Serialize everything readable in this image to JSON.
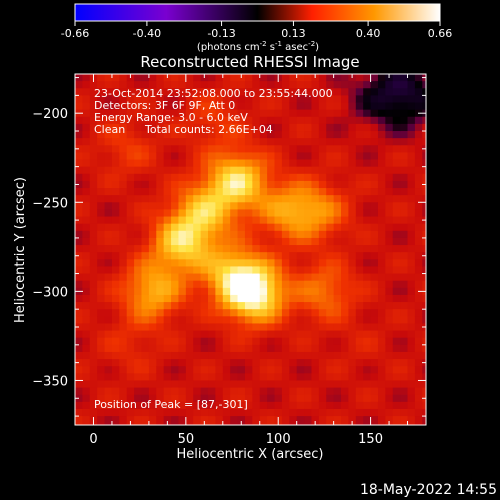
{
  "colorbar": {
    "tick_labels": [
      "-0.66",
      "-0.40",
      "-0.13",
      "0.13",
      "0.40",
      "0.66"
    ],
    "range": [
      -0.66,
      0.66
    ],
    "units_prefix": "(photons cm",
    "units_exp1": "-2",
    "units_mid": " s",
    "units_exp2": "-1",
    "units_mid2": " asec",
    "units_exp3": "-2",
    "units_suffix": ")",
    "colors": {
      "min": "#0000ff",
      "low": "#7a00d0",
      "mid": "#000000",
      "mid_high": "#ff2000",
      "high": "#ff9800",
      "max": "#ffffff"
    }
  },
  "title": "Reconstructed RHESSI Image",
  "annotations": {
    "line1": "23-Oct-2014 23:52:08.000 to 23:55:44.000",
    "line2": "Detectors: 3F 6F 9F, Att 0",
    "line3": "Energy Range: 3.0 - 6.0 keV",
    "line4_a": "Clean",
    "line4_b": "Total counts: 2.66E+04",
    "peak": "Position of Peak = [87,-301]"
  },
  "timestamp": "18-May-2022 14:55",
  "chart_data": {
    "type": "heatmap",
    "title": "Reconstructed RHESSI Image",
    "xlabel": "Heliocentric X (arcsec)",
    "ylabel": "Heliocentric Y (arcsec)",
    "xlim": [
      -10,
      180
    ],
    "ylim": [
      -375,
      -178
    ],
    "x_ticks": [
      0,
      50,
      100,
      150
    ],
    "y_ticks": [
      -200,
      -250,
      -300,
      -350
    ],
    "x_tick_labels": [
      "0",
      "50",
      "100",
      "150"
    ],
    "y_tick_labels": [
      "−200",
      "−250",
      "−300",
      "−350"
    ],
    "peak_position": [
      87,
      -301
    ],
    "emission_peaks": [
      {
        "x": 87,
        "y": -301,
        "value": 0.66
      },
      {
        "x": 78,
        "y": -238,
        "value": 0.55
      },
      {
        "x": 48,
        "y": -273,
        "value": 0.52
      },
      {
        "x": 60,
        "y": -255,
        "value": 0.45
      },
      {
        "x": 32,
        "y": -300,
        "value": 0.45
      },
      {
        "x": 75,
        "y": -290,
        "value": 0.45
      },
      {
        "x": 105,
        "y": -255,
        "value": 0.38
      },
      {
        "x": 122,
        "y": -255,
        "value": 0.35
      },
      {
        "x": 125,
        "y": -300,
        "value": 0.35
      },
      {
        "x": 18,
        "y": -220,
        "value": 0.25
      },
      {
        "x": 65,
        "y": -205,
        "value": 0.25
      },
      {
        "x": 20,
        "y": -330,
        "value": 0.22
      },
      {
        "x": 145,
        "y": -330,
        "value": 0.18
      }
    ],
    "dim_region": {
      "x": 165,
      "y": -190,
      "value": -0.05
    }
  }
}
